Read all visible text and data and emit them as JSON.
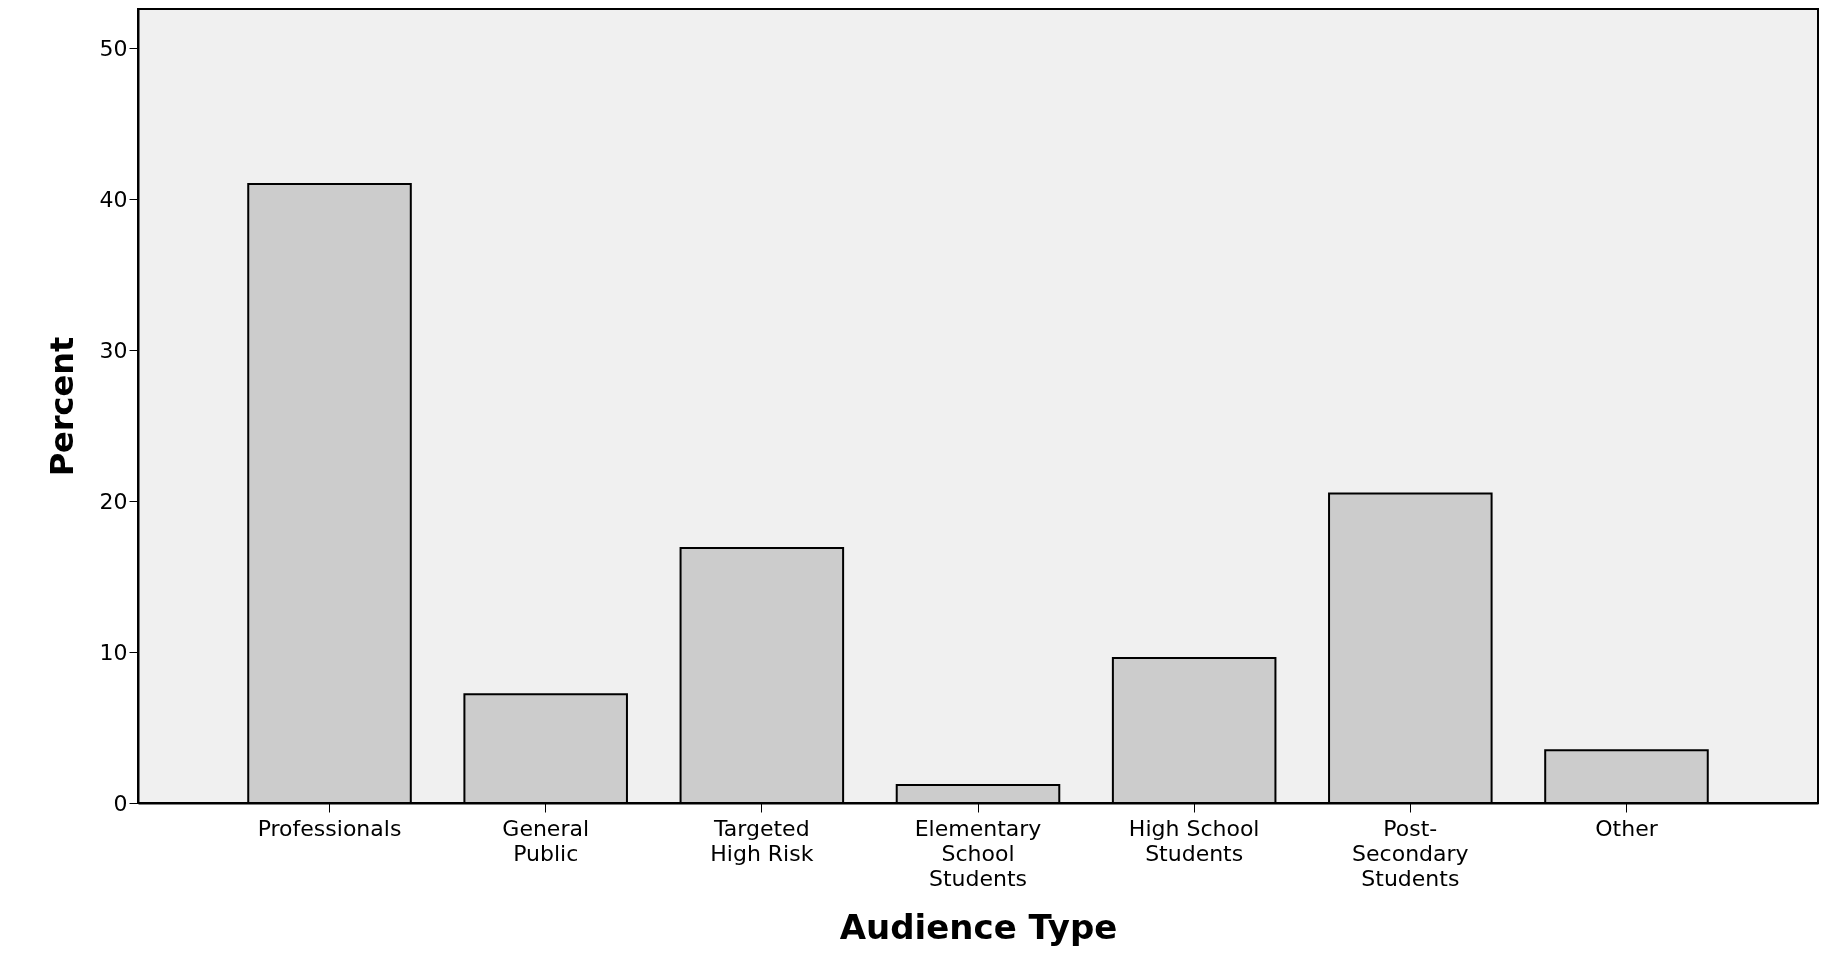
{
  "chart_data": {
    "type": "bar",
    "xlabel": "Audience Type",
    "ylabel": "Percent",
    "categories": [
      "Professionals",
      "General\nPublic",
      "Targeted\nHigh Risk",
      "Elementary\nSchool\nStudents",
      "High School\nStudents",
      "Post-\nSecondary\nStudents",
      "Other"
    ],
    "values": [
      41.0,
      7.2,
      16.9,
      1.2,
      9.6,
      20.5,
      3.5
    ],
    "color": "#cccccc",
    "ylim": [
      0,
      52.6
    ],
    "yticks": [
      0,
      10,
      20,
      30,
      40,
      50
    ],
    "grid": false
  }
}
